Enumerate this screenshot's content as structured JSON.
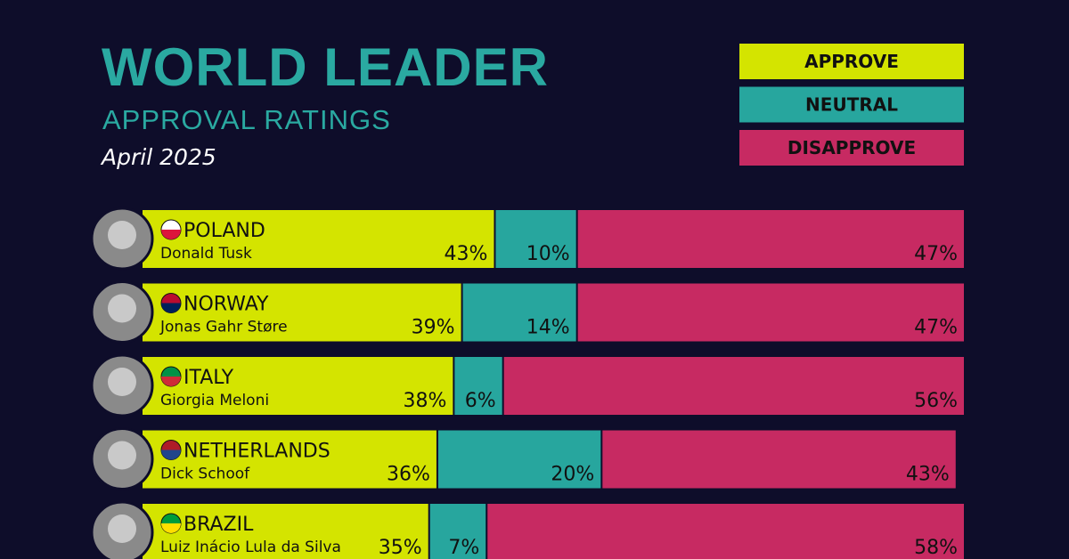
{
  "chart_data": {
    "type": "stacked_barh",
    "title": "WORLD LEADER",
    "subtitle": "APPROVAL RATINGS",
    "date": "April 2025",
    "categories": [
      "POLAND",
      "NORWAY",
      "ITALY",
      "NETHERLANDS",
      "BRAZIL"
    ],
    "leaders": [
      "Donald Tusk",
      "Jonas Gahr Støre",
      "Giorgia Meloni",
      "Dick Schoof",
      "Luiz Inácio Lula da Silva"
    ],
    "xlim": [
      0,
      100
    ],
    "series": [
      {
        "name": "APPROVE",
        "color": "#d4e400",
        "values": [
          43,
          39,
          38,
          36,
          35
        ],
        "value_labels": [
          "43%",
          "39%",
          "38%",
          "36%",
          "35%"
        ]
      },
      {
        "name": "NEUTRAL",
        "color": "#27a69e",
        "values": [
          10,
          14,
          6,
          20,
          7
        ],
        "value_labels": [
          "10%",
          "14%",
          "6%",
          "20%",
          "7%"
        ]
      },
      {
        "name": "DISAPPROVE",
        "color": "#c72a62",
        "values": [
          47,
          47,
          56,
          43,
          58
        ],
        "value_labels": [
          "47%",
          "47%",
          "56%",
          "43%",
          "58%"
        ]
      }
    ]
  }
}
